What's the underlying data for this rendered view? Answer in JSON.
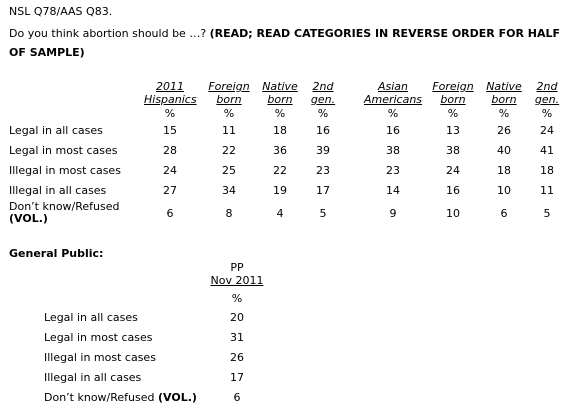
{
  "question_id": "NSL Q78/AAS Q83.",
  "question_text": "Do you think abortion should be …?",
  "instruction": "(READ; READ CATEGORIES IN REVERSE ORDER FOR HALF OF SAMPLE)",
  "columns": [
    {
      "line1": "2011",
      "line2": "Hispanics"
    },
    {
      "line1": "Foreign",
      "line2": "born"
    },
    {
      "line1": "Native",
      "line2": "born"
    },
    {
      "line1": "2nd",
      "line2": "gen."
    },
    {
      "line1": "Asian",
      "line2": "Americans"
    },
    {
      "line1": "Foreign",
      "line2": "born"
    },
    {
      "line1": "Native",
      "line2": "born"
    },
    {
      "line1": "2nd",
      "line2": "gen."
    }
  ],
  "pct_symbol": "%",
  "rows": [
    {
      "label": "Legal in all cases",
      "values": [
        "15",
        "11",
        "18",
        "16",
        "16",
        "13",
        "26",
        "24"
      ]
    },
    {
      "label": "Legal in most cases",
      "values": [
        "28",
        "22",
        "36",
        "39",
        "38",
        "38",
        "40",
        "41"
      ]
    },
    {
      "label": "Illegal in most cases",
      "values": [
        "24",
        "25",
        "22",
        "23",
        "23",
        "24",
        "18",
        "18"
      ]
    },
    {
      "label": "Illegal in all cases",
      "values": [
        "27",
        "34",
        "19",
        "17",
        "14",
        "16",
        "10",
        "11"
      ]
    },
    {
      "label": "Don’t know/Refused",
      "label_suffix": "(VOL.)",
      "values": [
        "6",
        "8",
        "4",
        "5",
        "9",
        "10",
        "6",
        "5"
      ]
    }
  ],
  "general_public": {
    "title": "General Public:",
    "header_line1": "PP",
    "header_line2": "Nov 2011",
    "pct_symbol": "%",
    "rows": [
      {
        "label": "Legal in all cases",
        "value": "20"
      },
      {
        "label": "Legal in most cases",
        "value": "31"
      },
      {
        "label": "Illegal in most cases",
        "value": "26"
      },
      {
        "label": "Illegal in all cases",
        "value": "17"
      },
      {
        "label": "Don’t know/Refused",
        "label_suffix": "(VOL.)",
        "value": "6"
      }
    ]
  }
}
